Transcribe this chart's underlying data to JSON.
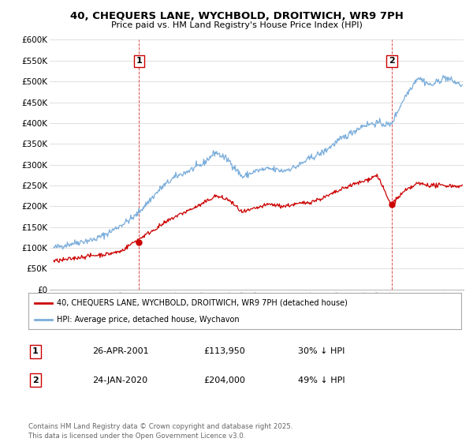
{
  "title": "40, CHEQUERS LANE, WYCHBOLD, DROITWICH, WR9 7PH",
  "subtitle": "Price paid vs. HM Land Registry's House Price Index (HPI)",
  "ylim": [
    0,
    600000
  ],
  "xlim_start": 1994.7,
  "xlim_end": 2025.4,
  "event1_x": 2001.32,
  "event1_label": "1",
  "event2_x": 2020.07,
  "event2_label": "2",
  "legend_line1": "40, CHEQUERS LANE, WYCHBOLD, DROITWICH, WR9 7PH (detached house)",
  "legend_line2": "HPI: Average price, detached house, Wychavon",
  "table_row1": [
    "1",
    "26-APR-2001",
    "£113,950",
    "30% ↓ HPI"
  ],
  "table_row2": [
    "2",
    "24-JAN-2020",
    "£204,000",
    "49% ↓ HPI"
  ],
  "footer": "Contains HM Land Registry data © Crown copyright and database right 2025.\nThis data is licensed under the Open Government Licence v3.0.",
  "line_color_red": "#cc0000",
  "line_color_blue": "#7aaddb",
  "grid_color": "#e0e0e0",
  "background_color": "#ffffff",
  "hpi_anchors_x": [
    1995,
    1996,
    1997,
    1998,
    1999,
    2000,
    2001,
    2002,
    2003,
    2004,
    2005,
    2006,
    2007,
    2008,
    2009,
    2010,
    2011,
    2012,
    2013,
    2014,
    2015,
    2016,
    2017,
    2018,
    2019,
    2020,
    2021,
    2022,
    2023,
    2024,
    2025.3
  ],
  "hpi_anchors_y": [
    100000,
    108000,
    115000,
    120000,
    135000,
    155000,
    175000,
    210000,
    245000,
    270000,
    285000,
    300000,
    330000,
    310000,
    270000,
    285000,
    290000,
    285000,
    295000,
    315000,
    330000,
    355000,
    375000,
    395000,
    400000,
    395000,
    460000,
    510000,
    490000,
    510000,
    490000
  ],
  "price_anchors_x": [
    1995,
    1996,
    1997,
    1998,
    1999,
    2000,
    2001,
    2002,
    2003,
    2004,
    2005,
    2006,
    2007,
    2008,
    2009,
    2010,
    2011,
    2012,
    2013,
    2014,
    2015,
    2016,
    2017,
    2018,
    2019,
    2020,
    2021,
    2022,
    2023,
    2024,
    2025.3
  ],
  "price_anchors_y": [
    68000,
    72000,
    78000,
    82000,
    85000,
    92000,
    115000,
    135000,
    155000,
    175000,
    190000,
    205000,
    225000,
    215000,
    185000,
    195000,
    205000,
    200000,
    205000,
    210000,
    220000,
    235000,
    250000,
    260000,
    275000,
    204000,
    235000,
    255000,
    250000,
    250000,
    248000
  ],
  "noise_seed": 42,
  "hpi_noise_scale": 4000,
  "price_noise_scale": 2500
}
